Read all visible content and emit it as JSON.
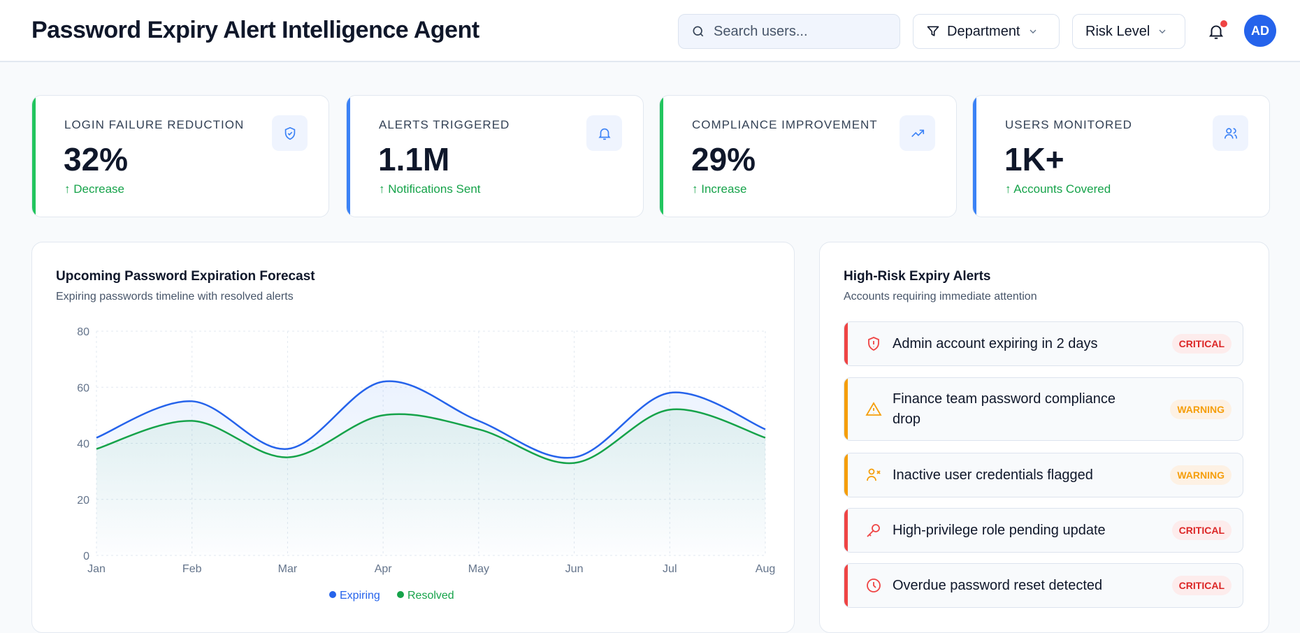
{
  "header": {
    "title": "Password Expiry Alert Intelligence Agent",
    "search_placeholder": "Search users...",
    "department_label": "Department",
    "risk_label": "Risk Level",
    "avatar_initials": "AD"
  },
  "kpis": [
    {
      "label": "LOGIN FAILURE REDUCTION",
      "value": "32%",
      "sub": "↑ Decrease",
      "accent": "#22c55e",
      "icon": "shield-check-icon"
    },
    {
      "label": "ALERTS TRIGGERED",
      "value": "1.1M",
      "sub": "↑ Notifications Sent",
      "accent": "#3b82f6",
      "icon": "bell-icon"
    },
    {
      "label": "COMPLIANCE IMPROVEMENT",
      "value": "29%",
      "sub": "↑ Increase",
      "accent": "#22c55e",
      "icon": "trending-up-icon"
    },
    {
      "label": "USERS MONITORED",
      "value": "1K+",
      "sub": "↑ Accounts Covered",
      "accent": "#3b82f6",
      "icon": "users-icon"
    }
  ],
  "forecast": {
    "title": "Upcoming Password Expiration Forecast",
    "subtitle": "Expiring passwords timeline with resolved alerts"
  },
  "chart_data": {
    "type": "area",
    "title": "Upcoming Password Expiration Forecast",
    "categories": [
      "Jan",
      "Feb",
      "Mar",
      "Apr",
      "May",
      "Jun",
      "Jul",
      "Aug"
    ],
    "series": [
      {
        "name": "Expiring",
        "color": "#2563eb",
        "values": [
          42,
          55,
          38,
          62,
          48,
          35,
          58,
          45
        ]
      },
      {
        "name": "Resolved",
        "color": "#16a34a",
        "values": [
          38,
          48,
          35,
          50,
          45,
          33,
          52,
          42
        ]
      }
    ],
    "yticks": [
      0,
      20,
      40,
      60,
      80
    ],
    "ylim": [
      0,
      80
    ],
    "grid": true,
    "legend": "bottom"
  },
  "alerts_panel": {
    "title": "High-Risk Expiry Alerts",
    "subtitle": "Accounts requiring immediate attention",
    "items": [
      {
        "text": "Admin account expiring in 2 days",
        "badge": "CRITICAL",
        "icon": "shield-alert-icon"
      },
      {
        "text": "Finance team password compliance drop",
        "badge": "WARNING",
        "icon": "warning-triangle-icon"
      },
      {
        "text": "Inactive user credentials flagged",
        "badge": "WARNING",
        "icon": "user-x-icon"
      },
      {
        "text": "High-privilege role pending update",
        "badge": "CRITICAL",
        "icon": "key-icon"
      },
      {
        "text": "Overdue password reset detected",
        "badge": "CRITICAL",
        "icon": "clock-icon"
      }
    ]
  },
  "colors": {
    "critical": "#ef4444",
    "warning": "#f59e0b",
    "primary": "#2563eb",
    "success": "#16a34a"
  }
}
